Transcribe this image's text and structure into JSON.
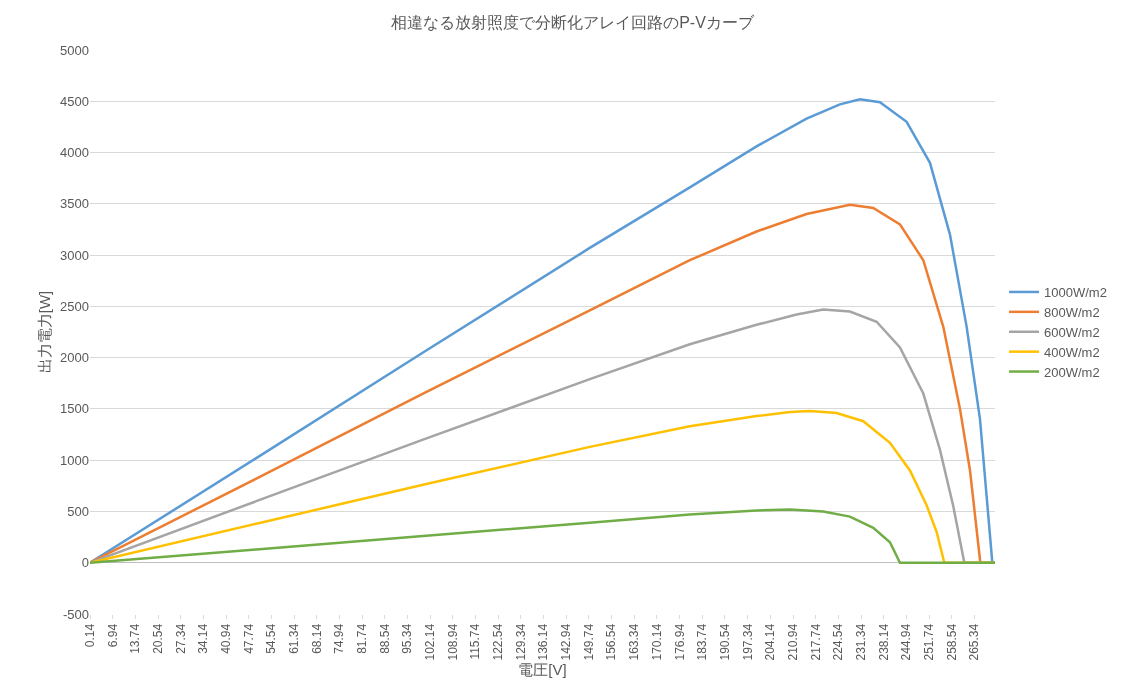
{
  "chart_data": {
    "type": "line",
    "title": "相違なる放射照度で分断化アレイ回路のP-Vカーブ",
    "xlabel": "電圧[V]",
    "ylabel": "出力電力[W]",
    "xlim": [
      0.14,
      271.5
    ],
    "xticks": [
      0.14,
      6.94,
      13.74,
      20.54,
      27.34,
      34.14,
      40.94,
      47.74,
      54.54,
      61.34,
      68.14,
      74.94,
      81.74,
      88.54,
      95.34,
      102.14,
      108.94,
      115.74,
      122.54,
      129.34,
      136.14,
      142.94,
      149.74,
      156.54,
      163.34,
      170.14,
      176.94,
      183.74,
      190.54,
      197.34,
      204.14,
      210.94,
      217.74,
      224.54,
      231.34,
      238.14,
      244.94,
      251.74,
      258.54,
      265.34
    ],
    "ylim": [
      -500,
      5000
    ],
    "yticks": [
      -500,
      0,
      500,
      1000,
      1500,
      2000,
      2500,
      3000,
      3500,
      4000,
      4500,
      5000
    ],
    "grid": "y",
    "legend": "right",
    "marker": "none",
    "line_style": "solid",
    "series": [
      {
        "name": "1000W/m2",
        "color": "#5b9bd5",
        "x": [
          0.14,
          50,
          100,
          150,
          180,
          200,
          215,
          225,
          231,
          237,
          245,
          252,
          258,
          263,
          267,
          270.7,
          271.5
        ],
        "values": [
          0,
          1020,
          2050,
          3070,
          3660,
          4060,
          4330,
          4470,
          4520,
          4490,
          4300,
          3900,
          3200,
          2300,
          1400,
          0,
          0
        ]
      },
      {
        "name": "800W/m2",
        "color": "#ed7d31",
        "x": [
          0.14,
          50,
          100,
          150,
          180,
          200,
          215,
          228,
          235,
          243,
          250,
          256,
          261,
          264,
          267.1,
          271.5
        ],
        "values": [
          0,
          820,
          1650,
          2460,
          2950,
          3230,
          3400,
          3490,
          3460,
          3300,
          2950,
          2300,
          1500,
          900,
          0,
          0
        ]
      },
      {
        "name": "600W/m2",
        "color": "#a5a5a5",
        "x": [
          0.14,
          50,
          100,
          150,
          180,
          200,
          212,
          220,
          228,
          236,
          243,
          250,
          255,
          259,
          262.3,
          271.5
        ],
        "values": [
          0,
          600,
          1200,
          1790,
          2130,
          2320,
          2420,
          2470,
          2450,
          2350,
          2100,
          1650,
          1100,
          550,
          0,
          0
        ]
      },
      {
        "name": "400W/m2",
        "color": "#ffc000",
        "x": [
          0.14,
          50,
          100,
          150,
          180,
          200,
          210,
          216,
          224,
          232,
          240,
          246,
          251,
          254,
          256.3,
          271.5
        ],
        "values": [
          0,
          380,
          760,
          1130,
          1330,
          1430,
          1470,
          1480,
          1460,
          1380,
          1170,
          900,
          560,
          300,
          0,
          0
        ]
      },
      {
        "name": "200W/m2",
        "color": "#70ad47",
        "x": [
          0.14,
          50,
          100,
          150,
          180,
          200,
          210,
          220,
          228,
          235,
          240,
          243,
          271.5
        ],
        "values": [
          0,
          130,
          260,
          390,
          470,
          510,
          520,
          500,
          450,
          340,
          200,
          0,
          0
        ]
      }
    ]
  }
}
